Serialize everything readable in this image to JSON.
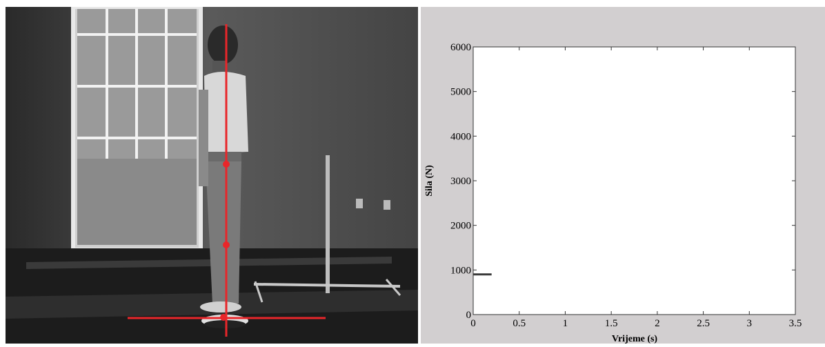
{
  "video": {
    "overlay_color": "#e8262a"
  },
  "chart_data": {
    "type": "line",
    "title": "",
    "xlabel": "Vrijeme (s)",
    "ylabel": "Sila (N)",
    "xlim": [
      0,
      3.5
    ],
    "ylim": [
      0,
      6000
    ],
    "xticks": [
      0,
      0.5,
      1,
      1.5,
      2,
      2.5,
      3,
      3.5
    ],
    "xtick_labels": [
      "0",
      "0.5",
      "1",
      "1.5",
      "2",
      "2.5",
      "3",
      "3.5"
    ],
    "yticks": [
      0,
      1000,
      2000,
      3000,
      4000,
      5000,
      6000
    ],
    "ytick_labels": [
      "0",
      "1000",
      "2000",
      "3000",
      "4000",
      "5000",
      "6000"
    ],
    "grid": false,
    "series": [
      {
        "color": "#3a3a3a",
        "x": [
          0,
          0.2
        ],
        "y": [
          900,
          900
        ]
      }
    ]
  }
}
